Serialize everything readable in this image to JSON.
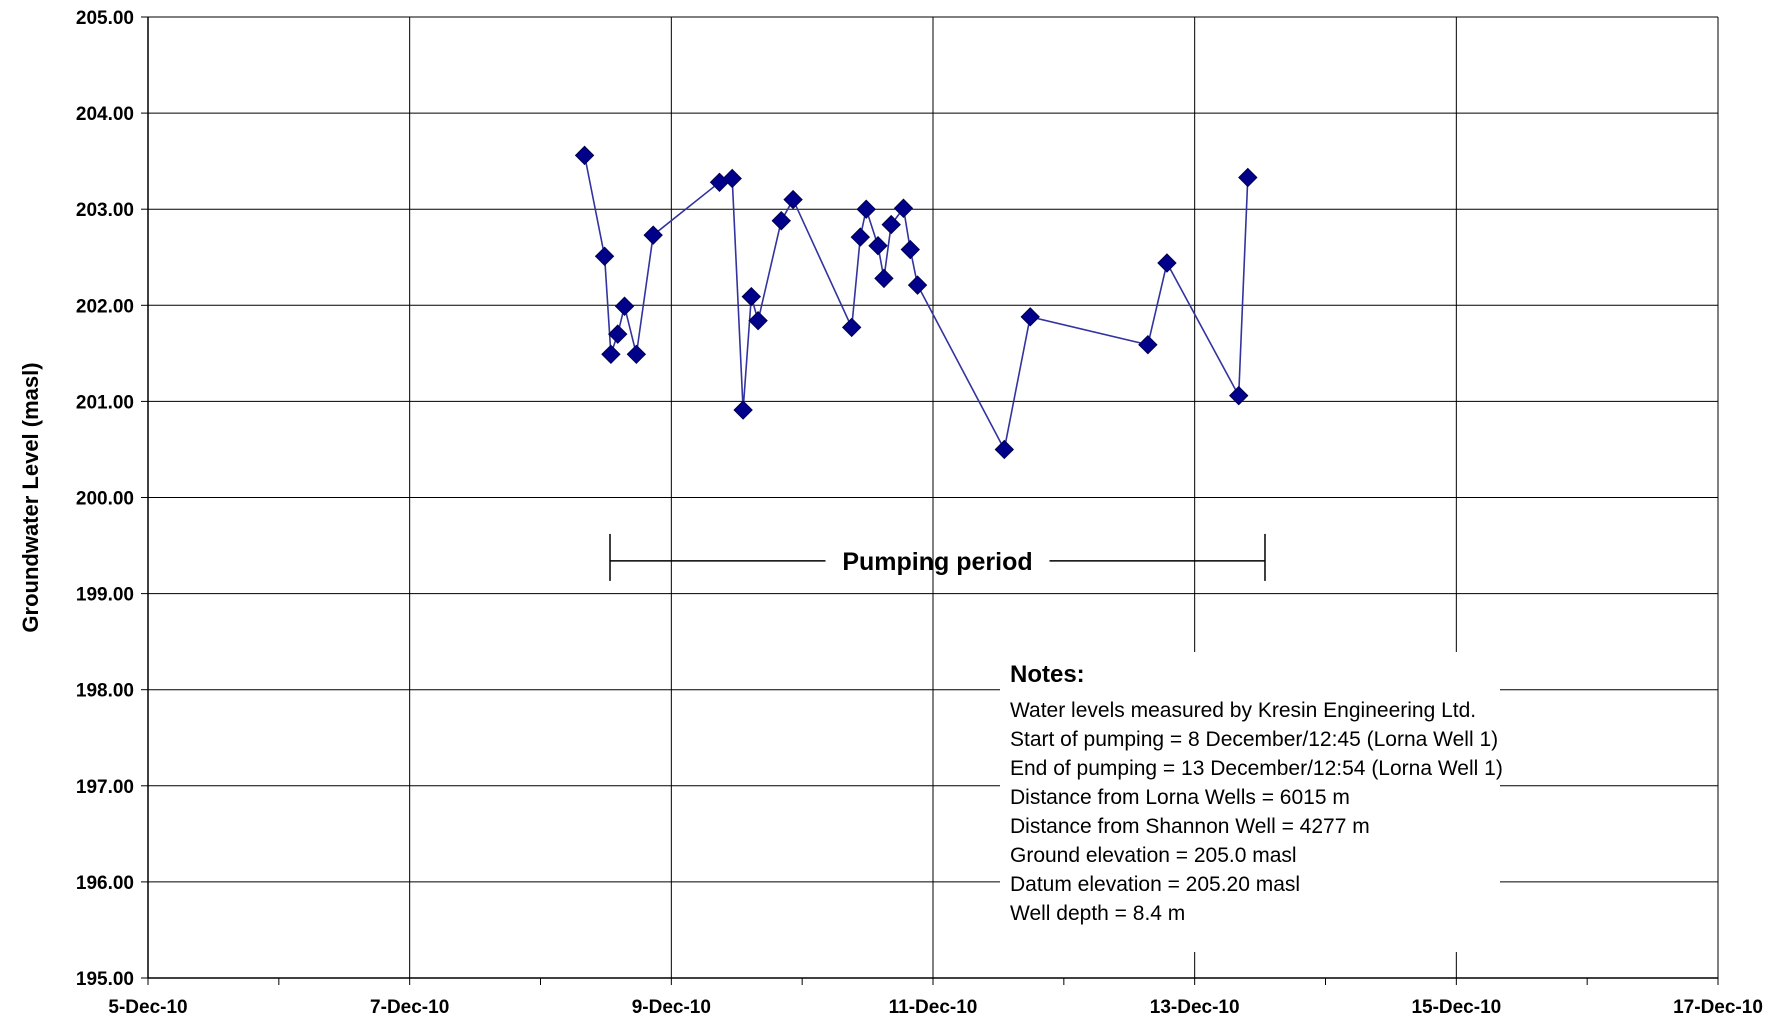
{
  "chart_data": {
    "type": "line",
    "title": "",
    "xlabel": "",
    "ylabel": "Groundwater Level (masl)",
    "ylim": [
      195.0,
      205.0
    ],
    "xlim": [
      "5-Dec-10 00:00",
      "17-Dec-10 00:00"
    ],
    "x_tick_labels": [
      "5-Dec-10",
      "7-Dec-10",
      "9-Dec-10",
      "11-Dec-10",
      "13-Dec-10",
      "15-Dec-10",
      "17-Dec-10"
    ],
    "x_tick_dates": [
      "5-Dec-10 00:00",
      "7-Dec-10 00:00",
      "9-Dec-10 00:00",
      "11-Dec-10 00:00",
      "13-Dec-10 00:00",
      "15-Dec-10 00:00",
      "17-Dec-10 00:00"
    ],
    "y_tick_labels": [
      "195.00",
      "196.00",
      "197.00",
      "198.00",
      "199.00",
      "200.00",
      "201.00",
      "202.00",
      "203.00",
      "204.00",
      "205.00"
    ],
    "grid": true,
    "series": [
      {
        "color": "#00008B",
        "marker": "diamond",
        "points": [
          {
            "x": "8-Dec-10 08:05",
            "y": 203.56
          },
          {
            "x": "8-Dec-10 11:45",
            "y": 202.51
          },
          {
            "x": "8-Dec-10 12:55",
            "y": 201.49
          },
          {
            "x": "8-Dec-10 14:10",
            "y": 201.7
          },
          {
            "x": "8-Dec-10 15:25",
            "y": 201.99
          },
          {
            "x": "8-Dec-10 17:35",
            "y": 201.49
          },
          {
            "x": "8-Dec-10 20:40",
            "y": 202.73
          },
          {
            "x": "9-Dec-10 08:50",
            "y": 203.28
          },
          {
            "x": "9-Dec-10 11:10",
            "y": 203.32
          },
          {
            "x": "9-Dec-10 13:10",
            "y": 200.91
          },
          {
            "x": "9-Dec-10 14:40",
            "y": 202.09
          },
          {
            "x": "9-Dec-10 15:55",
            "y": 201.84
          },
          {
            "x": "9-Dec-10 20:10",
            "y": 202.88
          },
          {
            "x": "9-Dec-10 22:20",
            "y": 203.1
          },
          {
            "x": "10-Dec-10 09:05",
            "y": 201.77
          },
          {
            "x": "10-Dec-10 10:40",
            "y": 202.71
          },
          {
            "x": "10-Dec-10 11:45",
            "y": 203.0
          },
          {
            "x": "10-Dec-10 13:55",
            "y": 202.62
          },
          {
            "x": "10-Dec-10 15:00",
            "y": 202.28
          },
          {
            "x": "10-Dec-10 16:20",
            "y": 202.84
          },
          {
            "x": "10-Dec-10 18:35",
            "y": 203.01
          },
          {
            "x": "10-Dec-10 19:50",
            "y": 202.58
          },
          {
            "x": "10-Dec-10 21:10",
            "y": 202.21
          },
          {
            "x": "11-Dec-10 13:05",
            "y": 200.5
          },
          {
            "x": "11-Dec-10 17:50",
            "y": 201.88
          },
          {
            "x": "12-Dec-10 15:25",
            "y": 201.59
          },
          {
            "x": "12-Dec-10 18:55",
            "y": 202.44
          },
          {
            "x": "13-Dec-10 08:05",
            "y": 201.06
          },
          {
            "x": "13-Dec-10 09:45",
            "y": 203.33
          }
        ]
      }
    ],
    "annotations": [
      {
        "text": "Pumping period",
        "x_start": "8-Dec-10 12:45",
        "x_end": "13-Dec-10 12:54",
        "y": 199.34
      }
    ]
  },
  "notes": {
    "title": "Notes:",
    "lines": [
      "Water levels measured by Kresin Engineering Ltd.",
      "Start of pumping = 8 December/12:45 (Lorna Well 1)",
      "End of pumping = 13 December/12:54 (Lorna Well 1)",
      "Distance from Lorna Wells = 6015 m",
      "Distance from Shannon Well = 4277 m",
      "Ground elevation = 205.0 masl",
      "Datum elevation = 205.20 masl",
      "Well depth = 8.4 m"
    ]
  }
}
